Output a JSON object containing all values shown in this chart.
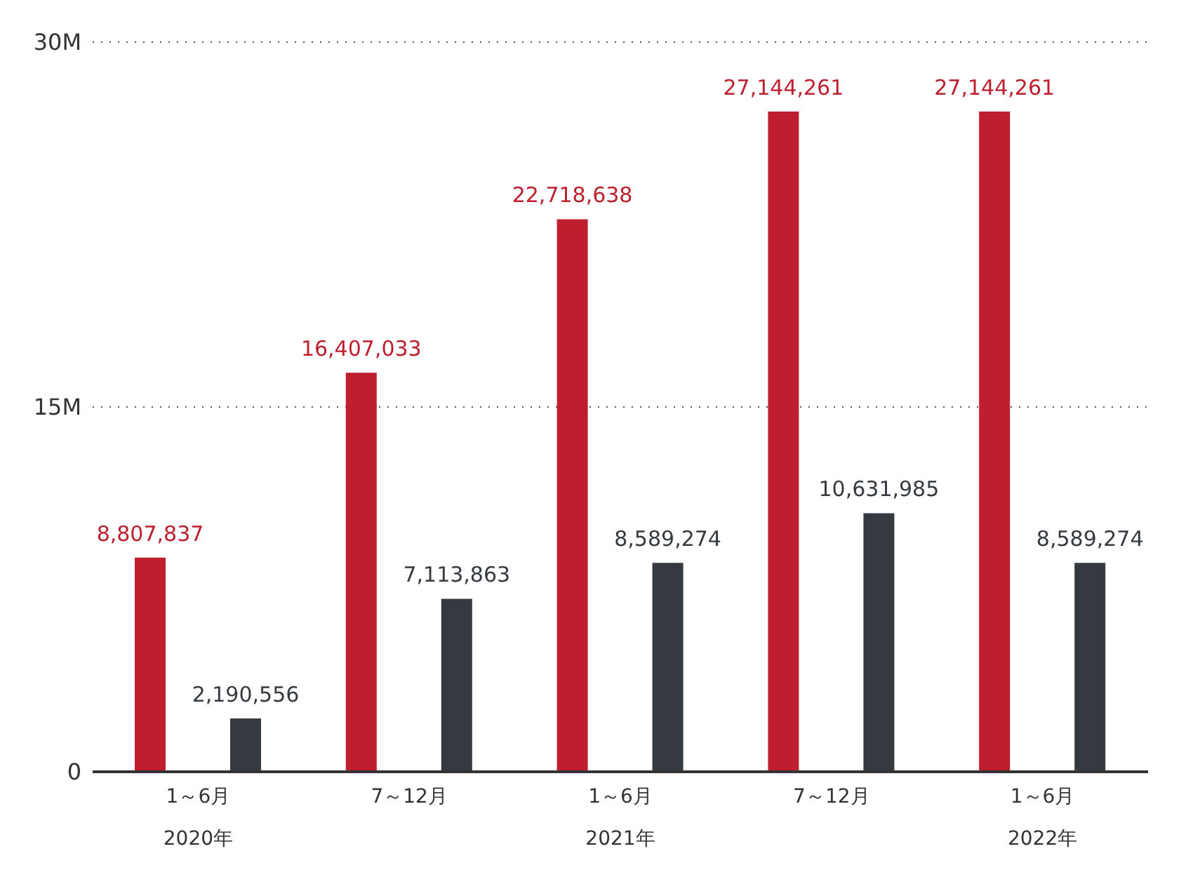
{
  "chart_data": {
    "type": "bar",
    "categories": [
      "1～6月\n2020年",
      "7～12月",
      "1～6月\n2021年",
      "7～12月",
      "1～6月\n2022年"
    ],
    "series": [
      {
        "color": "#be1e2d",
        "values": [
          8807837,
          16407033,
          22718638,
          27144261,
          27144261
        ],
        "value_labels": [
          "8,807,837",
          "16,407,033",
          "22,718,638",
          "27,144,261",
          "27,144,261"
        ]
      },
      {
        "color": "#343a40",
        "values": [
          2190556,
          7113863,
          8589274,
          10631985,
          8589274
        ],
        "value_labels": [
          "2,190,556",
          "7,113,863",
          "8,589,274",
          "10,631,985",
          "8,589,274"
        ]
      }
    ],
    "ylim": [
      0,
      30000000
    ],
    "yticks": [
      {
        "value": 0,
        "label": "0"
      },
      {
        "value": 15000000,
        "label": "15M"
      },
      {
        "value": 30000000,
        "label": "30M"
      }
    ],
    "grid": "y",
    "legend": false
  }
}
